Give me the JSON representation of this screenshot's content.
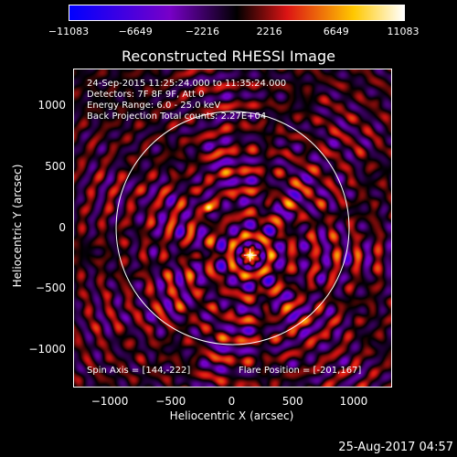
{
  "colorbar": {
    "ticks": [
      {
        "value": -11083,
        "label": "−11083"
      },
      {
        "value": -6649,
        "label": "−6649"
      },
      {
        "value": -2216,
        "label": "−2216"
      },
      {
        "value": 2216,
        "label": "2216"
      },
      {
        "value": 6649,
        "label": "6649"
      },
      {
        "value": 11083,
        "label": "11083"
      }
    ],
    "range": [
      -11083,
      11083
    ]
  },
  "title": "Reconstructed RHESSI Image",
  "info": {
    "time": "24-Sep-2015 11:25:24.000 to 11:35:24.000",
    "detectors": "Detectors: 7F 8F 9F, Att 0",
    "energy": "Energy Range: 6.0 - 25.0 keV",
    "method": "Back Projection      Total counts: 2.27E+04",
    "spin_axis": "Spin Axis = [144,-222]",
    "flare_position": "Flare Position = [-201,167]"
  },
  "axes": {
    "xlabel": "Heliocentric X (arcsec)",
    "ylabel": "Heliocentric Y (arcsec)",
    "xrange": [
      -1300,
      1300
    ],
    "yrange": [
      -1300,
      1300
    ],
    "xticks": [
      {
        "value": -1000,
        "label": "−1000"
      },
      {
        "value": -500,
        "label": "−500"
      },
      {
        "value": 0,
        "label": "0"
      },
      {
        "value": 500,
        "label": "500"
      },
      {
        "value": 1000,
        "label": "1000"
      }
    ],
    "yticks": [
      {
        "value": 1000,
        "label": "1000"
      },
      {
        "value": 500,
        "label": "500"
      },
      {
        "value": 0,
        "label": "0"
      },
      {
        "value": -500,
        "label": "−500"
      },
      {
        "value": -1000,
        "label": "−1000"
      }
    ]
  },
  "features": {
    "limb_radius": 955,
    "center_source": [
      144,
      -222
    ],
    "bright_source": [
      -201,
      167
    ]
  },
  "footer_date": "25-Aug-2017 04:57"
}
